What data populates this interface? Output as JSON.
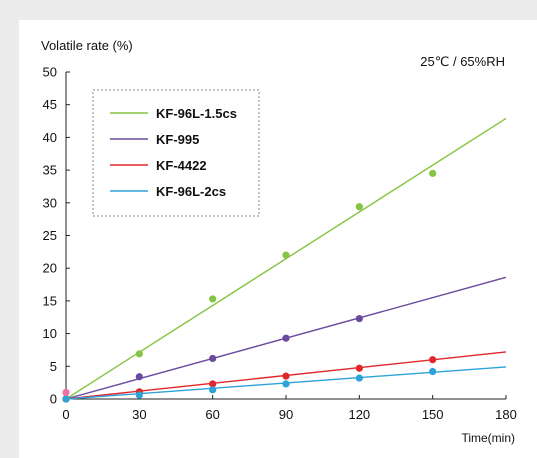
{
  "chart_data": {
    "type": "scatter",
    "ylabel": "Volatile rate (%)",
    "xlabel": "Time(min)",
    "annotation": "25℃ / 65%RH",
    "xlim": [
      0,
      180
    ],
    "ylim": [
      0,
      50
    ],
    "xticks": [
      0,
      30,
      60,
      90,
      120,
      150,
      180
    ],
    "yticks": [
      0,
      5,
      10,
      15,
      20,
      25,
      30,
      35,
      40,
      45,
      50
    ],
    "grid": false,
    "legend_position": "top-left",
    "series": [
      {
        "name": "KF-96L-1.5cs",
        "color": "#86c443",
        "x": [
          0,
          30,
          60,
          90,
          120,
          150
        ],
        "y": [
          0,
          6.9,
          15.3,
          22.0,
          29.4,
          34.5
        ],
        "trend": [
          [
            0,
            0
          ],
          [
            180,
            42.9
          ]
        ]
      },
      {
        "name": "KF-995",
        "color": "#6a4a9e",
        "x": [
          0,
          30,
          60,
          90,
          120
        ],
        "y": [
          0,
          3.4,
          6.2,
          9.3,
          12.3
        ],
        "trend": [
          [
            0,
            0
          ],
          [
            180,
            18.6
          ]
        ]
      },
      {
        "name": "KF-4422",
        "color": "#e2272b",
        "x": [
          0,
          30,
          60,
          90,
          120,
          150
        ],
        "y": [
          0,
          1.1,
          2.3,
          3.5,
          4.7,
          6.0
        ],
        "trend": [
          [
            0,
            0
          ],
          [
            180,
            7.2
          ]
        ]
      },
      {
        "name": "KF-96L-2cs",
        "color": "#2ea3d8",
        "x": [
          0,
          30,
          60,
          90,
          120,
          150
        ],
        "y": [
          0,
          0.6,
          1.4,
          2.3,
          3.2,
          4.2
        ],
        "trend": [
          [
            0,
            0
          ],
          [
            180,
            4.9
          ]
        ]
      }
    ],
    "extra_points": [
      {
        "x": 0,
        "y": 1.0,
        "color": "#f06fa8"
      }
    ]
  }
}
